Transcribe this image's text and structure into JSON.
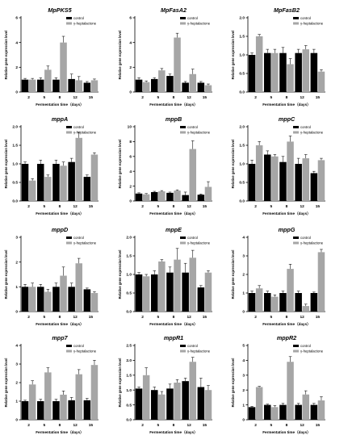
{
  "colors": {
    "control": "#000000",
    "treatment": "#a6a6a6"
  },
  "chart_data": [
    {
      "type": "bar",
      "title": "MpPKS5",
      "ylabel": "Relative gene expression level",
      "xlabel": "Fermentation time（days）",
      "categories": [
        "2",
        "5",
        "8",
        "12",
        "15"
      ],
      "ylim": [
        0,
        6
      ],
      "yticks": [
        0,
        2,
        4,
        6
      ],
      "legend": "top-right",
      "series": [
        {
          "name": "control",
          "values": [
            1.0,
            1.0,
            1.0,
            1.05,
            0.75
          ],
          "errors": [
            0.1,
            0.15,
            0.15,
            0.4,
            0.1
          ]
        },
        {
          "name": "γ-heptalactone",
          "values": [
            1.0,
            1.8,
            4.0,
            0.95,
            0.95
          ],
          "errors": [
            0.1,
            0.3,
            0.5,
            0.3,
            0.1
          ]
        }
      ]
    },
    {
      "type": "bar",
      "title": "MpFasA2",
      "ylabel": "Relative gene expression level",
      "xlabel": "Fermentation time（days）",
      "categories": [
        "2",
        "5",
        "8",
        "12",
        "15"
      ],
      "ylim": [
        0,
        6
      ],
      "yticks": [
        0,
        2,
        4,
        6
      ],
      "legend": "top-right",
      "series": [
        {
          "name": "control",
          "values": [
            1.0,
            1.05,
            1.3,
            0.75,
            0.75
          ],
          "errors": [
            0.15,
            0.1,
            0.15,
            0.1,
            0.1
          ]
        },
        {
          "name": "γ-heptalactone",
          "values": [
            0.8,
            1.75,
            4.4,
            1.45,
            0.55
          ],
          "errors": [
            0.1,
            0.15,
            0.35,
            0.4,
            0.1
          ]
        }
      ]
    },
    {
      "type": "bar",
      "title": "MpFasB2",
      "ylabel": "Relative gene expression level",
      "xlabel": "Fermentation time（days）",
      "categories": [
        "2",
        "5",
        "8",
        "12",
        "15"
      ],
      "ylim": [
        0,
        2
      ],
      "yticks": [
        0.0,
        0.5,
        1.0,
        1.5,
        2.0
      ],
      "legend": "top-right",
      "series": [
        {
          "name": "control",
          "values": [
            1.0,
            1.05,
            1.05,
            1.05,
            1.05
          ],
          "errors": [
            0.05,
            0.1,
            0.15,
            0.1,
            0.1
          ]
        },
        {
          "name": "γ-heptalactone",
          "values": [
            1.5,
            1.05,
            0.75,
            1.15,
            0.55
          ],
          "errors": [
            0.05,
            0.1,
            0.15,
            0.1,
            0.05
          ]
        }
      ]
    },
    {
      "type": "bar",
      "title": "mppA",
      "ylabel": "Relative gene expression level",
      "xlabel": "Fermentation time（days）",
      "categories": [
        "2",
        "5",
        "8",
        "12",
        "15"
      ],
      "ylim": [
        0,
        2
      ],
      "yticks": [
        0.0,
        0.5,
        1.0,
        1.5,
        2.0
      ],
      "legend": "top-right",
      "series": [
        {
          "name": "control",
          "values": [
            1.0,
            1.0,
            1.0,
            1.05,
            0.65
          ],
          "errors": [
            0.05,
            0.1,
            0.1,
            0.1,
            0.05
          ]
        },
        {
          "name": "γ-heptalactone",
          "values": [
            0.55,
            0.65,
            0.95,
            1.7,
            1.25
          ],
          "errors": [
            0.05,
            0.05,
            0.1,
            0.15,
            0.05
          ]
        }
      ]
    },
    {
      "type": "bar",
      "title": "mppB",
      "ylabel": "Relative gene expression level",
      "xlabel": "Fermentation time（days）",
      "categories": [
        "2",
        "5",
        "8",
        "12",
        "15"
      ],
      "ylim": [
        0,
        10
      ],
      "yticks": [
        0,
        2,
        4,
        6,
        8,
        10
      ],
      "legend": "top-right",
      "series": [
        {
          "name": "control",
          "values": [
            1.0,
            1.2,
            1.1,
            0.8,
            0.85
          ],
          "errors": [
            0.1,
            0.1,
            0.1,
            0.4,
            0.1
          ]
        },
        {
          "name": "γ-heptalactone",
          "values": [
            0.9,
            1.3,
            1.4,
            7.0,
            1.9
          ],
          "errors": [
            0.1,
            0.1,
            0.1,
            1.1,
            0.7
          ]
        }
      ]
    },
    {
      "type": "bar",
      "title": "mppC",
      "ylabel": "Relative gene expression level",
      "xlabel": "Fermentation time（days）",
      "categories": [
        "2",
        "5",
        "8",
        "12",
        "15"
      ],
      "ylim": [
        0,
        2
      ],
      "yticks": [
        0.0,
        0.5,
        1.0,
        1.5,
        2.0
      ],
      "legend": "top-right",
      "series": [
        {
          "name": "control",
          "values": [
            1.0,
            1.25,
            1.05,
            1.0,
            0.75
          ],
          "errors": [
            0.1,
            0.1,
            0.15,
            0.15,
            0.05
          ]
        },
        {
          "name": "γ-heptalactone",
          "values": [
            1.5,
            1.2,
            1.6,
            1.15,
            1.1
          ],
          "errors": [
            0.1,
            0.05,
            0.15,
            0.1,
            0.05
          ]
        }
      ]
    },
    {
      "type": "bar",
      "title": "mppD",
      "ylabel": "Relative gene expression level",
      "xlabel": "Fermentation time（days）",
      "categories": [
        "2",
        "5",
        "8",
        "12",
        "15"
      ],
      "ylim": [
        0,
        3
      ],
      "yticks": [
        0,
        1,
        2,
        3
      ],
      "legend": "top-right",
      "series": [
        {
          "name": "control",
          "values": [
            1.0,
            1.0,
            1.0,
            1.0,
            0.9
          ],
          "errors": [
            0.1,
            0.1,
            0.15,
            0.15,
            0.05
          ]
        },
        {
          "name": "γ-heptalactone",
          "values": [
            1.0,
            0.8,
            1.45,
            1.95,
            0.75
          ],
          "errors": [
            0.15,
            0.1,
            0.35,
            0.2,
            0.05
          ]
        }
      ]
    },
    {
      "type": "bar",
      "title": "mppE",
      "ylabel": "Relative gene expression level",
      "xlabel": "Fermentation time（days）",
      "categories": [
        "2",
        "5",
        "8",
        "12",
        "15"
      ],
      "ylim": [
        0,
        2
      ],
      "yticks": [
        0.0,
        0.5,
        1.0,
        1.5,
        2.0
      ],
      "legend": "top-right",
      "series": [
        {
          "name": "control",
          "values": [
            1.0,
            1.0,
            1.05,
            1.05,
            0.65
          ],
          "errors": [
            0.05,
            0.1,
            0.15,
            0.25,
            0.05
          ]
        },
        {
          "name": "γ-heptalactone",
          "values": [
            0.95,
            1.35,
            1.4,
            1.45,
            1.05
          ],
          "errors": [
            0.05,
            0.05,
            0.3,
            0.2,
            0.05
          ]
        }
      ]
    },
    {
      "type": "bar",
      "title": "mppG",
      "ylabel": "Relative gene expression level",
      "xlabel": "Fermentation time（days）",
      "categories": [
        "2",
        "5",
        "8",
        "12",
        "15"
      ],
      "ylim": [
        0,
        4
      ],
      "yticks": [
        0,
        1,
        2,
        3,
        4
      ],
      "legend": "top-right",
      "series": [
        {
          "name": "control",
          "values": [
            1.0,
            1.0,
            1.0,
            1.0,
            1.0
          ],
          "errors": [
            0.1,
            0.1,
            0.1,
            0.1,
            0.05
          ]
        },
        {
          "name": "γ-heptalactone",
          "values": [
            1.25,
            0.8,
            2.3,
            0.3,
            3.2
          ],
          "errors": [
            0.15,
            0.1,
            0.25,
            0.1,
            0.15
          ]
        }
      ]
    },
    {
      "type": "bar",
      "title": "mpp7",
      "ylabel": "Relative gene expression level",
      "xlabel": "Fermentation time（days）",
      "categories": [
        "2",
        "5",
        "8",
        "12",
        "15"
      ],
      "ylim": [
        0,
        4
      ],
      "yticks": [
        0,
        1,
        2,
        3,
        4
      ],
      "legend": "top-right",
      "series": [
        {
          "name": "control",
          "values": [
            1.0,
            1.0,
            1.0,
            1.05,
            1.05
          ],
          "errors": [
            0.05,
            0.1,
            0.1,
            0.15,
            0.1
          ]
        },
        {
          "name": "γ-heptalactone",
          "values": [
            1.9,
            2.55,
            1.35,
            2.45,
            2.95
          ],
          "errors": [
            0.2,
            0.25,
            0.2,
            0.25,
            0.25
          ]
        }
      ]
    },
    {
      "type": "bar",
      "title": "mppR1",
      "ylabel": "Relative gene expression level",
      "xlabel": "Fermentation time（days）",
      "categories": [
        "2",
        "5",
        "8",
        "12",
        "15"
      ],
      "ylim": [
        0,
        2.5
      ],
      "yticks": [
        0.0,
        0.5,
        1.0,
        1.5,
        2.0,
        2.5
      ],
      "legend": "top-right",
      "series": [
        {
          "name": "control",
          "values": [
            1.05,
            1.0,
            1.05,
            1.3,
            1.1
          ],
          "errors": [
            0.05,
            0.1,
            0.15,
            0.1,
            0.3
          ]
        },
        {
          "name": "γ-heptalactone",
          "values": [
            1.5,
            0.85,
            1.25,
            1.95,
            1.0
          ],
          "errors": [
            0.25,
            0.1,
            0.1,
            0.15,
            0.15
          ]
        }
      ]
    },
    {
      "type": "bar",
      "title": "mppR2",
      "ylabel": "Relative gene expression level",
      "xlabel": "Fermentation time（days）",
      "categories": [
        "2",
        "5",
        "8",
        "12",
        "15"
      ],
      "ylim": [
        0,
        5
      ],
      "yticks": [
        0,
        1,
        2,
        3,
        4,
        5
      ],
      "legend": "top-right",
      "series": [
        {
          "name": "control",
          "values": [
            0.85,
            1.0,
            1.0,
            1.0,
            1.0
          ],
          "errors": [
            0.05,
            0.05,
            0.1,
            0.1,
            0.1
          ]
        },
        {
          "name": "γ-heptalactone",
          "values": [
            2.2,
            0.85,
            3.9,
            1.7,
            1.3
          ],
          "errors": [
            0.05,
            0.1,
            0.35,
            0.25,
            0.25
          ]
        }
      ]
    }
  ]
}
